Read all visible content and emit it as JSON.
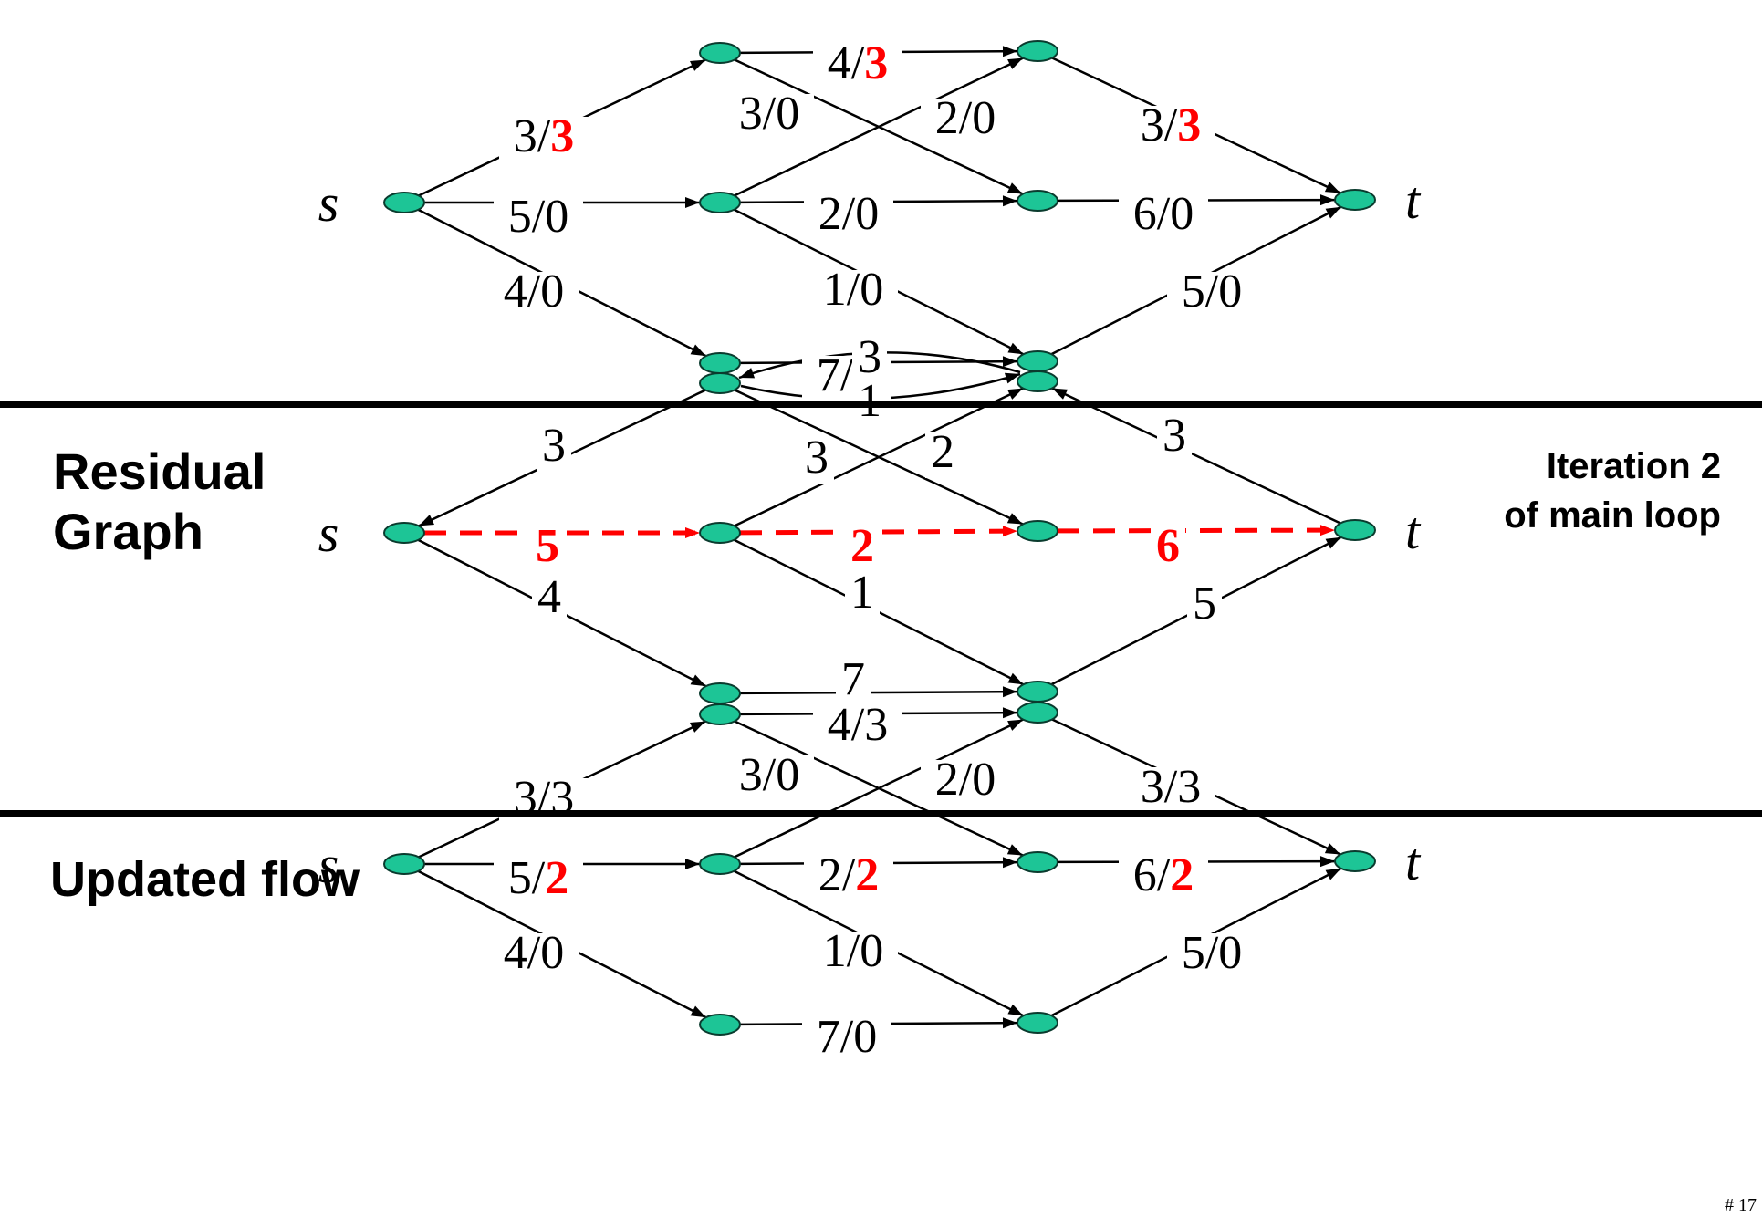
{
  "slide": {
    "residual_title_line1": "Residual",
    "residual_title_line2": "Graph",
    "updated_title": "Updated flow",
    "iteration_line1": "Iteration 2",
    "iteration_line2": "of main loop",
    "page_number": "# 17"
  },
  "colors": {
    "node_fill": "#1dc596",
    "node_stroke": "#0a3b2e",
    "edge": "#000000",
    "highlight": "#ff0000",
    "divider": "#000000"
  },
  "node_labels": {
    "source": "s",
    "sink": "t"
  },
  "graphs": [
    {
      "name": "current-flow",
      "edges": [
        {
          "id": "s-a1",
          "parts": [
            {
              "t": "3/"
            },
            {
              "t": "3",
              "red": true
            }
          ]
        },
        {
          "id": "s-a2",
          "parts": [
            {
              "t": "5/0"
            }
          ]
        },
        {
          "id": "s-a3",
          "parts": [
            {
              "t": "4/0"
            }
          ]
        },
        {
          "id": "a1-b1",
          "parts": [
            {
              "t": "4/"
            },
            {
              "t": "3",
              "red": true
            }
          ]
        },
        {
          "id": "a1-b2",
          "parts": [
            {
              "t": "3/0"
            }
          ]
        },
        {
          "id": "a2-b1",
          "parts": [
            {
              "t": "2/0"
            }
          ]
        },
        {
          "id": "a2-b2",
          "parts": [
            {
              "t": "2/0"
            }
          ]
        },
        {
          "id": "a2-b3",
          "parts": [
            {
              "t": "1/0"
            }
          ]
        },
        {
          "id": "a3-b3",
          "parts": [
            {
              "t": "7/0"
            }
          ]
        },
        {
          "id": "b1-t",
          "parts": [
            {
              "t": "3/"
            },
            {
              "t": "3",
              "red": true
            }
          ]
        },
        {
          "id": "b2-t",
          "parts": [
            {
              "t": "6/0"
            }
          ]
        },
        {
          "id": "b3-t",
          "parts": [
            {
              "t": "5/0"
            }
          ]
        }
      ]
    },
    {
      "name": "residual",
      "edges": [
        {
          "id": "a1-s",
          "parts": [
            {
              "t": "3"
            }
          ]
        },
        {
          "id": "s-a2",
          "parts": [
            {
              "t": "5",
              "red": true
            }
          ],
          "path": true
        },
        {
          "id": "s-a3",
          "parts": [
            {
              "t": "4"
            }
          ]
        },
        {
          "id": "b1-a1",
          "parts": [
            {
              "t": "3"
            }
          ]
        },
        {
          "id": "a1-b1",
          "parts": [
            {
              "t": "1"
            }
          ]
        },
        {
          "id": "a1-b2",
          "parts": [
            {
              "t": "3"
            }
          ]
        },
        {
          "id": "a2-b1",
          "parts": [
            {
              "t": "2"
            }
          ]
        },
        {
          "id": "a2-b2",
          "parts": [
            {
              "t": "2",
              "red": true
            }
          ],
          "path": true
        },
        {
          "id": "a2-b3",
          "parts": [
            {
              "t": "1"
            }
          ]
        },
        {
          "id": "a3-b3",
          "parts": [
            {
              "t": "7"
            }
          ]
        },
        {
          "id": "t-b1",
          "parts": [
            {
              "t": "3"
            }
          ]
        },
        {
          "id": "b2-t",
          "parts": [
            {
              "t": "6",
              "red": true
            }
          ],
          "path": true
        },
        {
          "id": "b3-t",
          "parts": [
            {
              "t": "5"
            }
          ]
        }
      ]
    },
    {
      "name": "updated-flow",
      "edges": [
        {
          "id": "s-a1",
          "parts": [
            {
              "t": "3/3"
            }
          ]
        },
        {
          "id": "s-a2",
          "parts": [
            {
              "t": "5/"
            },
            {
              "t": "2",
              "red": true
            }
          ]
        },
        {
          "id": "s-a3",
          "parts": [
            {
              "t": "4/0"
            }
          ]
        },
        {
          "id": "a1-b1",
          "parts": [
            {
              "t": "4/3"
            }
          ]
        },
        {
          "id": "a1-b2",
          "parts": [
            {
              "t": "3/0"
            }
          ]
        },
        {
          "id": "a2-b1",
          "parts": [
            {
              "t": "2/0"
            }
          ]
        },
        {
          "id": "a2-b2",
          "parts": [
            {
              "t": "2/"
            },
            {
              "t": "2",
              "red": true
            }
          ]
        },
        {
          "id": "a2-b3",
          "parts": [
            {
              "t": "1/0"
            }
          ]
        },
        {
          "id": "a3-b3",
          "parts": [
            {
              "t": "7/0"
            }
          ]
        },
        {
          "id": "b1-t",
          "parts": [
            {
              "t": "3/3"
            }
          ]
        },
        {
          "id": "b2-t",
          "parts": [
            {
              "t": "6/"
            },
            {
              "t": "2",
              "red": true
            }
          ]
        },
        {
          "id": "b3-t",
          "parts": [
            {
              "t": "5/0"
            }
          ]
        }
      ]
    }
  ]
}
